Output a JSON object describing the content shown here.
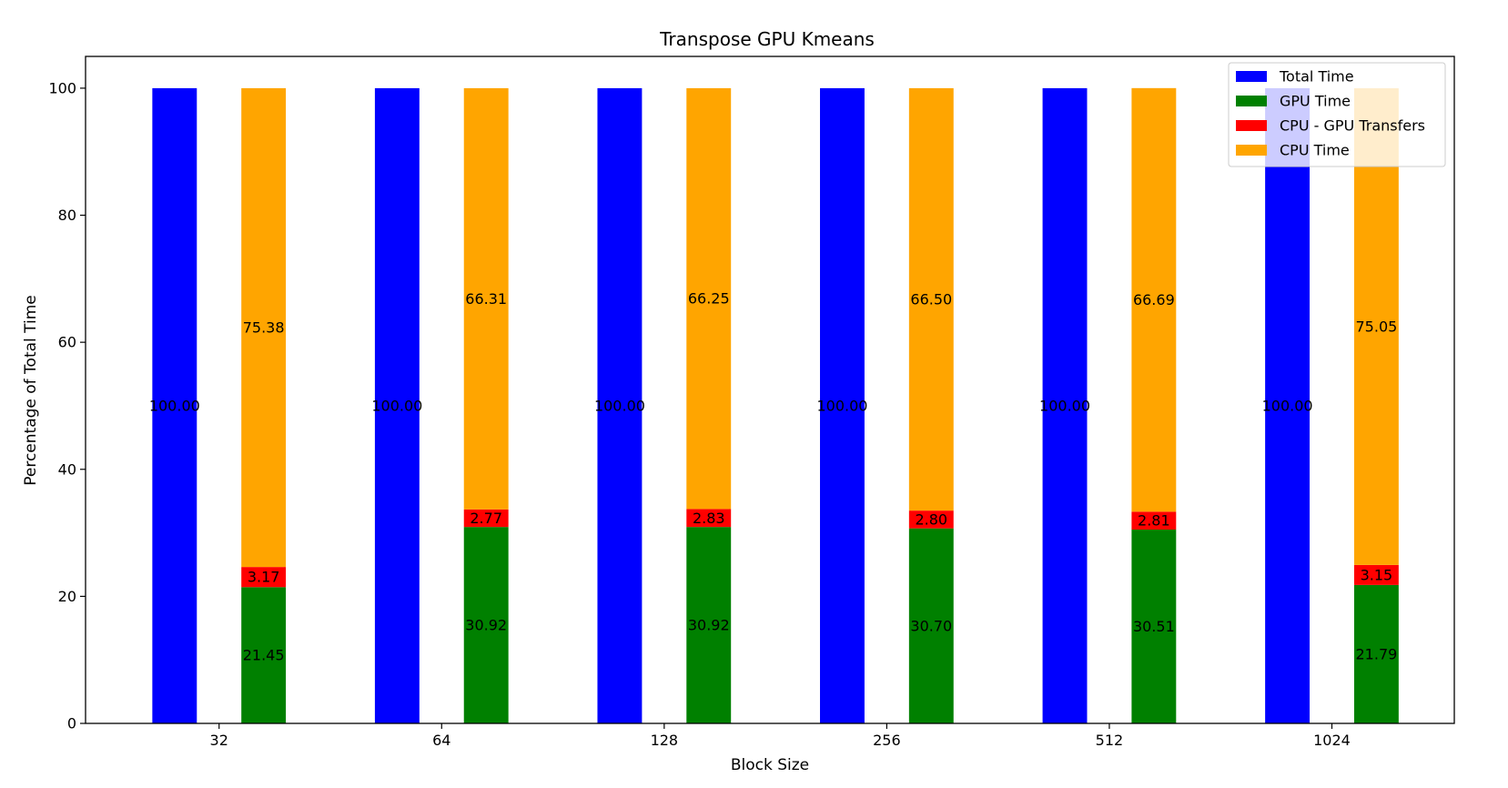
{
  "chart_data": {
    "type": "bar",
    "title": "Transpose GPU Kmeans",
    "xlabel": "Block Size",
    "ylabel": "Percentage of Total Time",
    "ylim": [
      0,
      105
    ],
    "yticks": [
      0,
      20,
      40,
      60,
      80,
      100
    ],
    "categories": [
      "32",
      "64",
      "128",
      "256",
      "512",
      "1024"
    ],
    "grid": false,
    "legend_position": "top-right",
    "series": [
      {
        "name": "Total Time",
        "color": "#0000ff",
        "stack": "total",
        "values": [
          100.0,
          100.0,
          100.0,
          100.0,
          100.0,
          100.0
        ],
        "labels": [
          "100.00",
          "100.00",
          "100.00",
          "100.00",
          "100.00",
          "100.00"
        ]
      },
      {
        "name": "GPU Time",
        "color": "#008000",
        "stack": "breakdown",
        "values": [
          21.45,
          30.92,
          30.92,
          30.7,
          30.51,
          21.79
        ],
        "labels": [
          "21.45",
          "30.92",
          "30.92",
          "30.70",
          "30.51",
          "21.79"
        ]
      },
      {
        "name": "CPU - GPU Transfers",
        "color": "#ff0000",
        "stack": "breakdown",
        "values": [
          3.17,
          2.77,
          2.83,
          2.8,
          2.81,
          3.15
        ],
        "labels": [
          "3.17",
          "2.77",
          "2.83",
          "2.80",
          "2.81",
          "3.15"
        ]
      },
      {
        "name": "CPU Time",
        "color": "#ffa500",
        "stack": "breakdown",
        "values": [
          75.38,
          66.31,
          66.25,
          66.5,
          66.69,
          75.05
        ],
        "labels": [
          "75.38",
          "66.31",
          "66.25",
          "66.50",
          "66.69",
          "75.05"
        ]
      }
    ]
  }
}
